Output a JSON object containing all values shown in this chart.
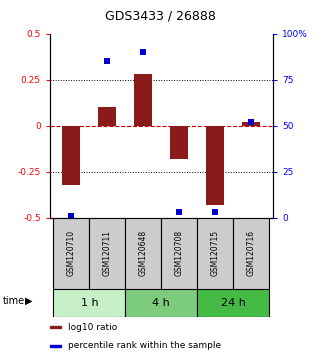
{
  "title": "GDS3433 / 26888",
  "samples": [
    "GSM120710",
    "GSM120711",
    "GSM120648",
    "GSM120708",
    "GSM120715",
    "GSM120716"
  ],
  "log10_ratio": [
    -0.32,
    0.1,
    0.28,
    -0.18,
    -0.43,
    0.02
  ],
  "percentile_rank": [
    1.0,
    85.0,
    90.0,
    3.0,
    3.0,
    52.0
  ],
  "groups": [
    {
      "label": "1 h",
      "indices": [
        0,
        1
      ],
      "color": "#c8f0c8"
    },
    {
      "label": "4 h",
      "indices": [
        2,
        3
      ],
      "color": "#7dcc7d"
    },
    {
      "label": "24 h",
      "indices": [
        4,
        5
      ],
      "color": "#44bb44"
    }
  ],
  "ylim_left": [
    -0.5,
    0.5
  ],
  "ylim_right": [
    0,
    100
  ],
  "yticks_left": [
    -0.5,
    -0.25,
    0,
    0.25,
    0.5
  ],
  "ytick_labels_left": [
    "-0.5",
    "-0.25",
    "0",
    "0.25",
    "0.5"
  ],
  "yticks_right": [
    0,
    25,
    50,
    75,
    100
  ],
  "ytick_labels_right": [
    "0",
    "25",
    "50",
    "75",
    "100%"
  ],
  "bar_color": "#8b1a1a",
  "dot_color": "#0000cc",
  "grid_color": "#000000",
  "zero_line_color": "#cc0000",
  "bar_width": 0.5,
  "dot_size": 22,
  "sample_box_color": "#cccccc",
  "legend_bar_label": "log10 ratio",
  "legend_dot_label": "percentile rank within the sample",
  "time_label": "time",
  "title_fontsize": 9,
  "tick_fontsize": 6.5,
  "sample_fontsize": 5.5,
  "group_label_fontsize": 8,
  "legend_fontsize": 6.5
}
